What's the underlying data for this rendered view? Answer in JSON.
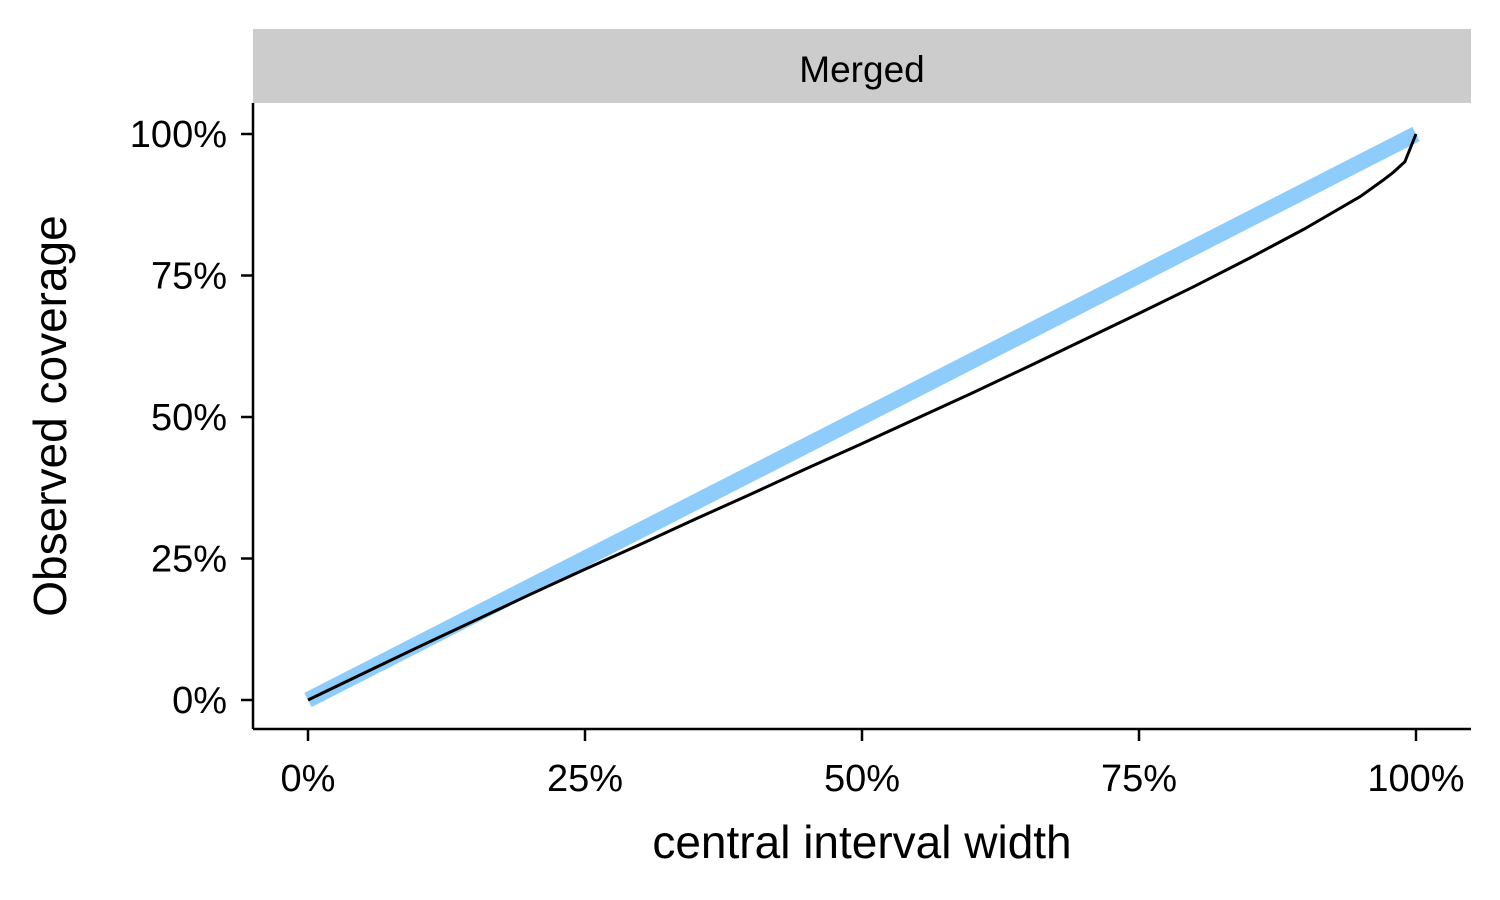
{
  "chart_data": {
    "type": "line",
    "facet_label": "Merged",
    "xlabel": "central interval width",
    "ylabel": "Observed coverage",
    "xlim": [
      0,
      100
    ],
    "ylim": [
      0,
      100
    ],
    "x_ticks": [
      0,
      25,
      50,
      75,
      100
    ],
    "x_tick_labels": [
      "0%",
      "25%",
      "50%",
      "75%",
      "100%"
    ],
    "y_ticks": [
      0,
      25,
      50,
      75,
      100
    ],
    "y_tick_labels": [
      "0%",
      "25%",
      "50%",
      "75%",
      "100%"
    ],
    "grid": false,
    "legend": "none",
    "series": [
      {
        "role": "reference",
        "color": "#8ecdfb",
        "x": [
          0,
          100
        ],
        "y": [
          0,
          100
        ]
      },
      {
        "role": "observed",
        "color": "#000000",
        "x": [
          0,
          5,
          10,
          15,
          20,
          25,
          30,
          35,
          40,
          45,
          50,
          55,
          60,
          65,
          70,
          75,
          80,
          85,
          90,
          95,
          97,
          98,
          99,
          100
        ],
        "y": [
          0,
          4.7,
          9.4,
          14.0,
          18.6,
          23.1,
          27.5,
          32.0,
          36.4,
          40.9,
          45.3,
          49.8,
          54.3,
          58.9,
          63.6,
          68.3,
          73.1,
          78.1,
          83.3,
          89.0,
          91.8,
          93.3,
          95.1,
          100
        ]
      }
    ]
  }
}
